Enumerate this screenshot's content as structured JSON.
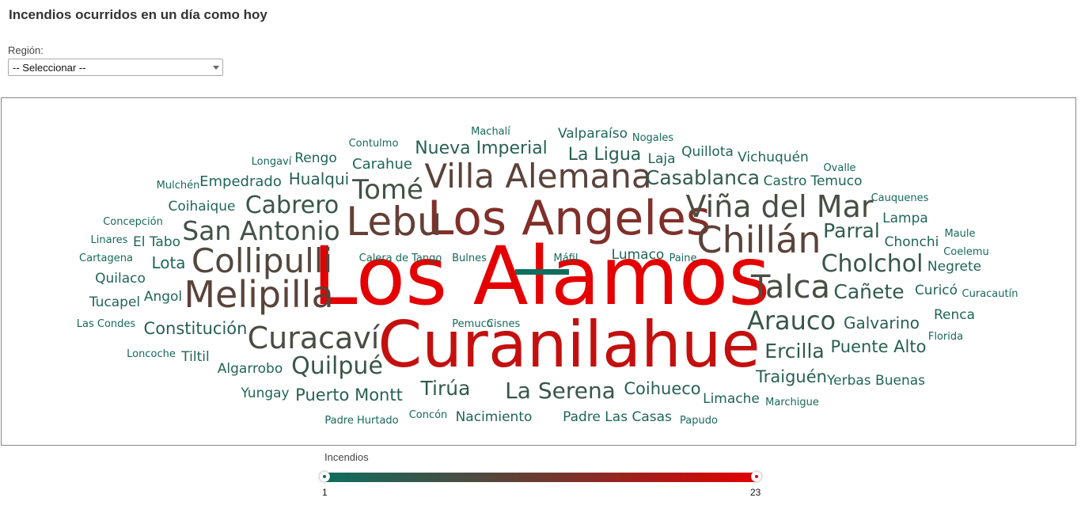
{
  "page": {
    "title": "Incendios ocurridos en un día como hoy"
  },
  "filter": {
    "label": "Región:",
    "selected": "-- Seleccionar --"
  },
  "legend": {
    "title": "Incendios",
    "min": 1,
    "max": 23,
    "min_color": "#0e6e5e",
    "max_color": "#e40000"
  },
  "chart_data": {
    "type": "wordcloud",
    "title": "",
    "value_label": "Incendios",
    "range": [
      1,
      23
    ],
    "words": [
      {
        "text": "Los Alamos",
        "value": 23
      },
      {
        "text": "Curanilahue",
        "value": 20
      },
      {
        "text": "Los Angeles",
        "value": 14
      },
      {
        "text": "Lebu",
        "value": 11
      },
      {
        "text": "Villa Alemana",
        "value": 10
      },
      {
        "text": "Chillán",
        "value": 10
      },
      {
        "text": "Melipilla",
        "value": 10
      },
      {
        "text": "Collipulli",
        "value": 9
      },
      {
        "text": "Viña del Mar",
        "value": 8
      },
      {
        "text": "Talca",
        "value": 8
      },
      {
        "text": "Curacaví",
        "value": 8
      },
      {
        "text": "San Antonio",
        "value": 7
      },
      {
        "text": "Tomé",
        "value": 7
      },
      {
        "text": "Cabrero",
        "value": 6
      },
      {
        "text": "Arauco",
        "value": 6
      },
      {
        "text": "Cholchol",
        "value": 6
      },
      {
        "text": "Quilpué",
        "value": 6
      },
      {
        "text": "La Serena",
        "value": 6
      },
      {
        "text": "Casablanca",
        "value": 5
      },
      {
        "text": "Cañete",
        "value": 5
      },
      {
        "text": "Parral",
        "value": 5
      },
      {
        "text": "Ercilla",
        "value": 5
      },
      {
        "text": "Tirúa",
        "value": 5
      },
      {
        "text": "Nueva Imperial",
        "value": 4
      },
      {
        "text": "La Ligua",
        "value": 4
      },
      {
        "text": "Puente Alto",
        "value": 4
      },
      {
        "text": "Traiguén",
        "value": 4
      },
      {
        "text": "Coihueco",
        "value": 4
      },
      {
        "text": "Puerto Montt",
        "value": 4
      },
      {
        "text": "Galvarino",
        "value": 4
      },
      {
        "text": "Constitución",
        "value": 4
      },
      {
        "text": "Hualqui",
        "value": 4
      },
      {
        "text": "Valparaíso",
        "value": 3
      },
      {
        "text": "Quillota",
        "value": 3
      },
      {
        "text": "Vichuquén",
        "value": 3
      },
      {
        "text": "Castro",
        "value": 3
      },
      {
        "text": "Temuco",
        "value": 3
      },
      {
        "text": "Empedrado",
        "value": 3
      },
      {
        "text": "Carahue",
        "value": 3
      },
      {
        "text": "Rengo",
        "value": 3
      },
      {
        "text": "Coihaique",
        "value": 3
      },
      {
        "text": "Lota",
        "value": 3
      },
      {
        "text": "El Tabo",
        "value": 3
      },
      {
        "text": "Quilaco",
        "value": 3
      },
      {
        "text": "Angol",
        "value": 3
      },
      {
        "text": "Tucapel",
        "value": 3
      },
      {
        "text": "Tiltil",
        "value": 3
      },
      {
        "text": "Algarrobo",
        "value": 3
      },
      {
        "text": "Yungay",
        "value": 3
      },
      {
        "text": "Nacimiento",
        "value": 3
      },
      {
        "text": "Padre Las Casas",
        "value": 3
      },
      {
        "text": "Limache",
        "value": 3
      },
      {
        "text": "Yerbas Buenas",
        "value": 3
      },
      {
        "text": "Curicó",
        "value": 3
      },
      {
        "text": "Negrete",
        "value": 3
      },
      {
        "text": "Chonchi",
        "value": 3
      },
      {
        "text": "Lampa",
        "value": 3
      },
      {
        "text": "Laja",
        "value": 3
      },
      {
        "text": "Lumaco",
        "value": 3
      },
      {
        "text": "Renca",
        "value": 3
      },
      {
        "text": "Machalí",
        "value": 2
      },
      {
        "text": "Nogales",
        "value": 2
      },
      {
        "text": "Contulmo",
        "value": 2
      },
      {
        "text": "Longaví",
        "value": 2
      },
      {
        "text": "Mulchén",
        "value": 2
      },
      {
        "text": "Concepción",
        "value": 2
      },
      {
        "text": "Linares",
        "value": 2
      },
      {
        "text": "Cartagena",
        "value": 2
      },
      {
        "text": "Las Condes",
        "value": 2
      },
      {
        "text": "Loncoche",
        "value": 2
      },
      {
        "text": "Padre Hurtado",
        "value": 2
      },
      {
        "text": "Concón",
        "value": 2
      },
      {
        "text": "Papudo",
        "value": 2
      },
      {
        "text": "Marchigue",
        "value": 2
      },
      {
        "text": "Florida",
        "value": 2
      },
      {
        "text": "Curacautín",
        "value": 2
      },
      {
        "text": "Coelemu",
        "value": 2
      },
      {
        "text": "Maule",
        "value": 2
      },
      {
        "text": "Cauquenes",
        "value": 2
      },
      {
        "text": "Ovalle",
        "value": 2
      },
      {
        "text": "Calera de Tango",
        "value": 2
      },
      {
        "text": "Bulnes",
        "value": 2
      },
      {
        "text": "Máfil",
        "value": 2
      },
      {
        "text": "Paine",
        "value": 2
      },
      {
        "text": "Pemuco",
        "value": 2
      },
      {
        "text": "Cisnes",
        "value": 2
      }
    ]
  }
}
